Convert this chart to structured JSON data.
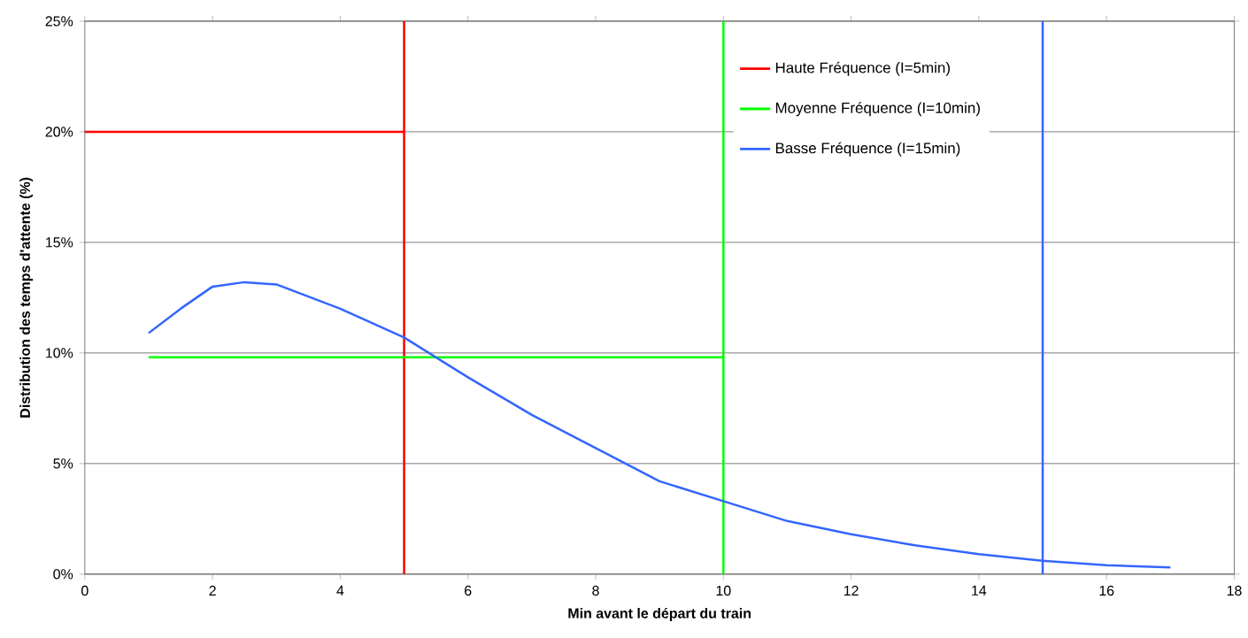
{
  "chart_data": {
    "type": "line",
    "xlabel": "Min avant le départ du train",
    "ylabel": "Distribution des temps d'attente (%)",
    "xlim": [
      0,
      18
    ],
    "xticks": [
      0,
      2,
      4,
      6,
      8,
      10,
      12,
      14,
      16,
      18
    ],
    "ylim": [
      0,
      25
    ],
    "yticks": [
      {
        "value": 0,
        "label": "0%"
      },
      {
        "value": 5,
        "label": "5%"
      },
      {
        "value": 10,
        "label": "10%"
      },
      {
        "value": 15,
        "label": "15%"
      },
      {
        "value": 20,
        "label": "20%"
      },
      {
        "value": 25,
        "label": "25%"
      }
    ],
    "grid": "y",
    "legend": "top right",
    "series": [
      {
        "name": "Haute Fréquence (I=5min)",
        "color": "#ff0000",
        "x": [
          0,
          5
        ],
        "values": [
          20,
          20
        ]
      },
      {
        "name": "Moyenne Fréquence (I=10min)",
        "color": "#00ff00",
        "x": [
          1,
          10
        ],
        "values": [
          9.8,
          9.8
        ]
      },
      {
        "name": "Basse Fréquence (I=15min)",
        "color": "#3366ff",
        "x": [
          1,
          1.5,
          2,
          2.5,
          3,
          4,
          5,
          6,
          7,
          8,
          9,
          10,
          11,
          12,
          13,
          14,
          15,
          16,
          17
        ],
        "values": [
          10.9,
          12.0,
          13.0,
          13.2,
          13.1,
          12.0,
          10.7,
          8.9,
          7.2,
          5.7,
          4.2,
          3.3,
          2.4,
          1.8,
          1.3,
          0.9,
          0.6,
          0.4,
          0.3
        ]
      }
    ],
    "ref_lines": [
      {
        "axis": "x",
        "value": 5,
        "color": "#ff0000"
      },
      {
        "axis": "x",
        "value": 10,
        "color": "#00ff00"
      },
      {
        "axis": "x",
        "value": 15,
        "color": "#3366ff"
      }
    ]
  }
}
